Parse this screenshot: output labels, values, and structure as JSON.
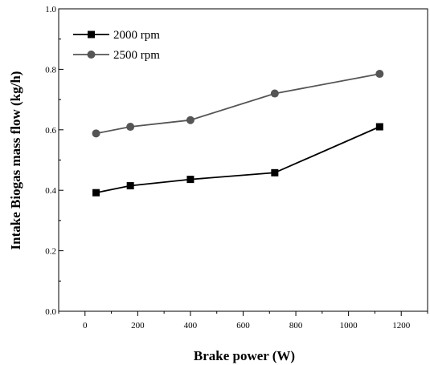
{
  "chart_data": {
    "type": "line",
    "title": "",
    "xlabel": "Brake power (W)",
    "ylabel": "Intake Biogas mass flow (kg/h)",
    "xlim": [
      -100,
      1300
    ],
    "ylim": [
      0.0,
      1.0
    ],
    "x_ticks": [
      "0",
      "200",
      "400",
      "600",
      "800",
      "1000",
      "1200"
    ],
    "y_ticks": [
      "0.0",
      "0.2",
      "0.4",
      "0.6",
      "0.8",
      "1.0"
    ],
    "grid": false,
    "legend_position": "top-left",
    "series": [
      {
        "name": "2000 rpm",
        "marker": "square",
        "color": "#000000",
        "x": [
          42,
          172,
          400,
          720,
          1118
        ],
        "y": [
          0.392,
          0.415,
          0.436,
          0.458,
          0.61
        ]
      },
      {
        "name": "2500 rpm",
        "marker": "circle",
        "color": "#555555",
        "x": [
          42,
          172,
          400,
          720,
          1118
        ],
        "y": [
          0.588,
          0.61,
          0.632,
          0.72,
          0.785
        ]
      }
    ]
  }
}
